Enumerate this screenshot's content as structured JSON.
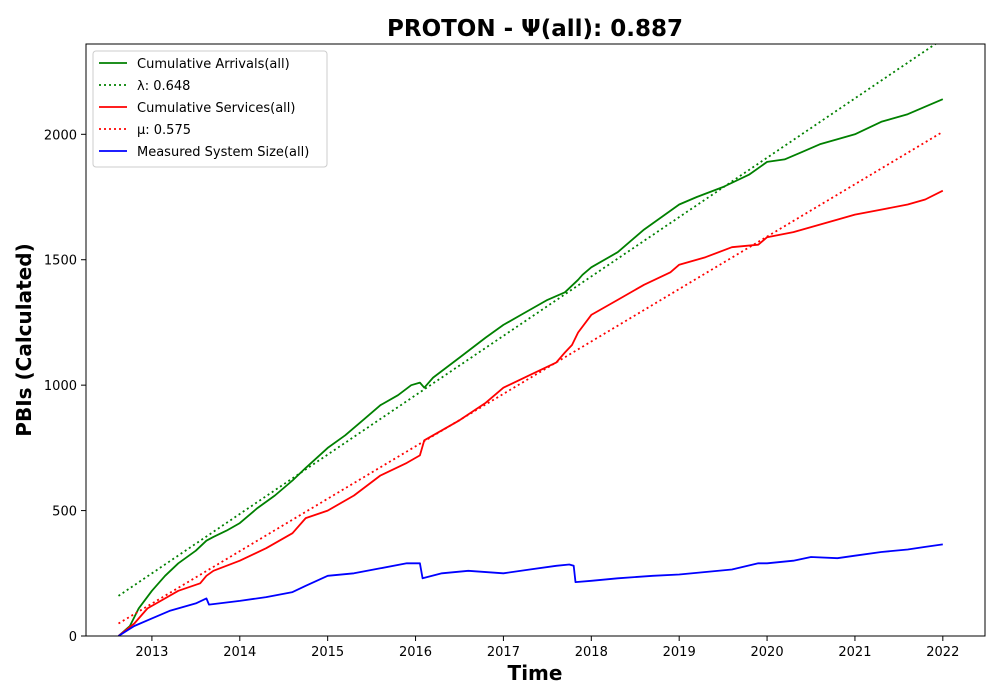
{
  "chart_data": {
    "type": "line",
    "title": "PROTON -  Ψ(all): 0.887",
    "xlabel": "Time",
    "ylabel": "PBIs (Calculated)",
    "xlim": [
      2012.25,
      2022.48
    ],
    "ylim": [
      0,
      2360
    ],
    "x_ticks": [
      2013,
      2014,
      2015,
      2016,
      2017,
      2018,
      2019,
      2020,
      2021,
      2022
    ],
    "y_ticks": [
      0,
      500,
      1000,
      1500,
      2000
    ],
    "grid": false,
    "legend_position": "top-left",
    "series": [
      {
        "name": "Cumulative Arrivals(all)",
        "style": "solid",
        "color": "#008000",
        "x": [
          2012.62,
          2012.75,
          2012.85,
          2013.0,
          2013.15,
          2013.3,
          2013.5,
          2013.62,
          2013.7,
          2013.85,
          2014.0,
          2014.2,
          2014.4,
          2014.6,
          2014.75,
          2015.0,
          2015.2,
          2015.4,
          2015.6,
          2015.8,
          2015.95,
          2016.05,
          2016.1,
          2016.2,
          2016.5,
          2016.8,
          2017.0,
          2017.2,
          2017.5,
          2017.7,
          2017.85,
          2017.9,
          2018.0,
          2018.3,
          2018.6,
          2019.0,
          2019.2,
          2019.5,
          2019.8,
          2020.0,
          2020.2,
          2020.4,
          2020.6,
          2020.8,
          2021.0,
          2021.3,
          2021.6,
          2021.8,
          2022.0
        ],
        "y": [
          0,
          40,
          110,
          180,
          240,
          290,
          340,
          380,
          395,
          420,
          450,
          510,
          560,
          620,
          670,
          750,
          800,
          860,
          920,
          960,
          1000,
          1010,
          990,
          1030,
          1110,
          1190,
          1240,
          1280,
          1340,
          1370,
          1420,
          1440,
          1470,
          1530,
          1620,
          1720,
          1750,
          1790,
          1840,
          1890,
          1900,
          1930,
          1960,
          1980,
          2000,
          2050,
          2080,
          2110,
          2140
        ]
      },
      {
        "name": "λ: 0.648",
        "style": "dotted",
        "color": "#008000",
        "x": [
          2012.62,
          2022.0
        ],
        "y": [
          160,
          2380
        ]
      },
      {
        "name": "Cumulative Services(all)",
        "style": "solid",
        "color": "#ff0000",
        "x": [
          2012.62,
          2012.8,
          2012.95,
          2013.1,
          2013.3,
          2013.55,
          2013.62,
          2013.7,
          2014.0,
          2014.3,
          2014.6,
          2014.75,
          2015.0,
          2015.3,
          2015.6,
          2015.9,
          2016.05,
          2016.1,
          2016.3,
          2016.5,
          2016.8,
          2017.0,
          2017.3,
          2017.6,
          2017.7,
          2017.78,
          2017.85,
          2018.0,
          2018.3,
          2018.6,
          2018.9,
          2019.0,
          2019.3,
          2019.6,
          2019.9,
          2020.0,
          2020.3,
          2020.5,
          2020.8,
          2021.0,
          2021.3,
          2021.6,
          2021.8,
          2022.0
        ],
        "y": [
          0,
          50,
          110,
          140,
          180,
          210,
          240,
          260,
          300,
          350,
          410,
          470,
          500,
          560,
          640,
          690,
          720,
          780,
          820,
          860,
          930,
          990,
          1040,
          1090,
          1130,
          1160,
          1210,
          1280,
          1340,
          1400,
          1450,
          1480,
          1510,
          1550,
          1560,
          1590,
          1610,
          1630,
          1660,
          1680,
          1700,
          1720,
          1740,
          1775
        ]
      },
      {
        "name": "μ: 0.575",
        "style": "dotted",
        "color": "#ff0000",
        "x": [
          2012.62,
          2022.0
        ],
        "y": [
          50,
          2010
        ]
      },
      {
        "name": "Measured System Size(all)",
        "style": "solid",
        "color": "#0000ff",
        "x": [
          2012.62,
          2012.8,
          2013.0,
          2013.2,
          2013.5,
          2013.62,
          2013.65,
          2014.0,
          2014.3,
          2014.6,
          2014.75,
          2015.0,
          2015.3,
          2015.6,
          2015.9,
          2016.05,
          2016.08,
          2016.3,
          2016.6,
          2017.0,
          2017.3,
          2017.6,
          2017.75,
          2017.8,
          2017.82,
          2018.0,
          2018.3,
          2018.7,
          2019.0,
          2019.3,
          2019.6,
          2019.9,
          2020.0,
          2020.3,
          2020.5,
          2020.8,
          2021.0,
          2021.3,
          2021.6,
          2021.8,
          2022.0
        ],
        "y": [
          0,
          40,
          70,
          100,
          130,
          150,
          125,
          140,
          155,
          175,
          200,
          240,
          250,
          270,
          290,
          290,
          230,
          250,
          260,
          250,
          265,
          280,
          285,
          280,
          215,
          220,
          230,
          240,
          245,
          255,
          265,
          290,
          290,
          300,
          315,
          310,
          320,
          335,
          345,
          355,
          365
        ]
      }
    ]
  }
}
